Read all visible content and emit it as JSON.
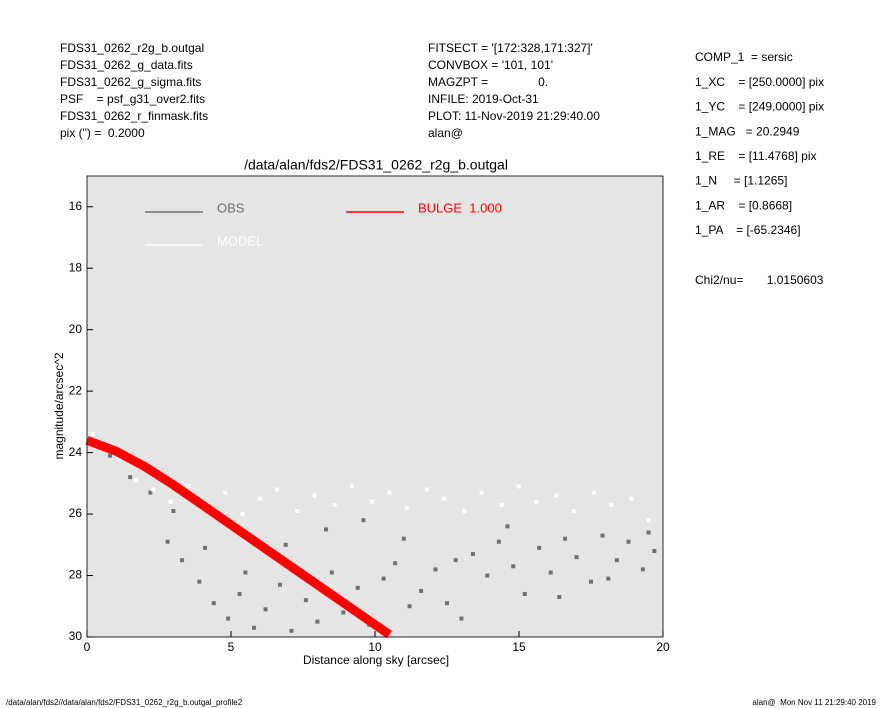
{
  "header": {
    "left": [
      "FDS31_0262_r2g_b.outgal",
      "FDS31_0262_g_data.fits",
      "FDS31_0262_g_sigma.fits",
      "PSF    = psf_g31_over2.fits",
      "FDS31_0262_r_finmask.fits",
      "pix (\") =  0.2000"
    ],
    "middle": [
      "FITSECT = '[172:328,171:327]'",
      "CONVBOX = '101, 101'",
      "MAGZPT =               0.",
      "INFILE: 2019-Oct-31",
      "PLOT: 11-Nov-2019 21:29:40.00",
      "alan@"
    ],
    "right": [
      "COMP_1  = sersic",
      "1_XC    = [250.0000] pix",
      "1_YC    = [249.0000] pix",
      "1_MAG   = 20.2949",
      "1_RE    = [11.4768] pix",
      "1_N     = [1.1265]",
      "1_AR    = [0.8668]",
      "1_PA    = [-65.2346]"
    ],
    "chi2": "Chi2/nu=       1.0150603"
  },
  "footer": {
    "left": "/data/alan/fds2//data/alan/fds2/FDS31_0262_r2g_b.outgal_profile2",
    "right": "alan@  Mon Nov 11 21:29:40 2019"
  },
  "chart_data": {
    "type": "scatter",
    "title": "/data/alan/fds2/FDS31_0262_r2g_b.outgal",
    "x_label": "Distance along sky [arcsec]",
    "y_label": "magnitude/arcsec^2",
    "xlim": [
      0,
      20
    ],
    "xticks": [
      0,
      5,
      10,
      15,
      20
    ],
    "ylim": [
      30,
      15
    ],
    "yticks": [
      16,
      18,
      20,
      22,
      24,
      26,
      28,
      30
    ],
    "background": "#e5e5e5",
    "series": [
      {
        "name": "OBS",
        "color": "#707070",
        "type": "scatter",
        "x": [
          0.3,
          0.8,
          1.5,
          2.2,
          2.8,
          3.3,
          3.9,
          4.4,
          4.9,
          5.3,
          5.8,
          6.2,
          6.7,
          7.1,
          7.6,
          8.0,
          8.5,
          8.9,
          9.4,
          9.8,
          10.3,
          10.7,
          11.2,
          11.6,
          12.1,
          12.5,
          13.0,
          13.4,
          13.9,
          14.3,
          14.8,
          15.2,
          15.7,
          16.1,
          16.6,
          17.0,
          17.5,
          17.9,
          18.4,
          18.8,
          19.3,
          19.7,
          3.0,
          4.1,
          5.5,
          6.9,
          8.3,
          9.6,
          11.0,
          12.8,
          14.6,
          16.4,
          18.1,
          19.5
        ],
        "values": [
          23.7,
          24.1,
          24.8,
          25.3,
          26.9,
          27.5,
          28.2,
          28.9,
          29.4,
          28.6,
          29.7,
          29.1,
          28.3,
          29.8,
          28.8,
          29.5,
          27.9,
          29.2,
          28.4,
          29.6,
          28.1,
          27.6,
          29.0,
          28.5,
          27.8,
          28.9,
          29.4,
          27.3,
          28.0,
          26.9,
          27.7,
          28.6,
          27.1,
          27.9,
          26.8,
          27.4,
          28.2,
          26.7,
          27.5,
          26.9,
          27.8,
          27.2,
          25.9,
          27.1,
          27.9,
          27.0,
          26.5,
          26.2,
          26.8,
          27.5,
          26.4,
          28.7,
          28.1,
          26.6
        ]
      },
      {
        "name": "MODEL",
        "color": "#ffffff",
        "type": "scatter",
        "x": [
          0.2,
          0.6,
          1.1,
          1.7,
          2.3,
          2.9,
          3.5,
          4.2,
          4.8,
          5.4,
          6.0,
          6.6,
          7.3,
          7.9,
          8.6,
          9.2,
          9.9,
          10.5,
          11.1,
          11.8,
          12.4,
          13.1,
          13.7,
          14.4,
          15.0,
          15.6,
          16.3,
          16.9,
          17.6,
          18.2,
          18.9,
          19.5
        ],
        "values": [
          23.4,
          23.8,
          24.2,
          24.9,
          25.2,
          25.6,
          25.1,
          25.8,
          25.3,
          26.0,
          25.5,
          25.2,
          25.9,
          25.4,
          25.7,
          25.1,
          25.6,
          25.3,
          25.8,
          25.2,
          25.5,
          25.9,
          25.3,
          25.7,
          25.1,
          25.6,
          25.4,
          25.9,
          25.3,
          25.7,
          25.5,
          26.2
        ]
      },
      {
        "name": "BULGE  1.000",
        "color": "#ff0000",
        "type": "line",
        "x": [
          0,
          1,
          2,
          3,
          4,
          5,
          6,
          7,
          8,
          9,
          10,
          10.5
        ],
        "values": [
          23.6,
          23.95,
          24.45,
          25.05,
          25.7,
          26.35,
          27.0,
          27.65,
          28.3,
          28.95,
          29.6,
          29.92
        ]
      }
    ]
  }
}
